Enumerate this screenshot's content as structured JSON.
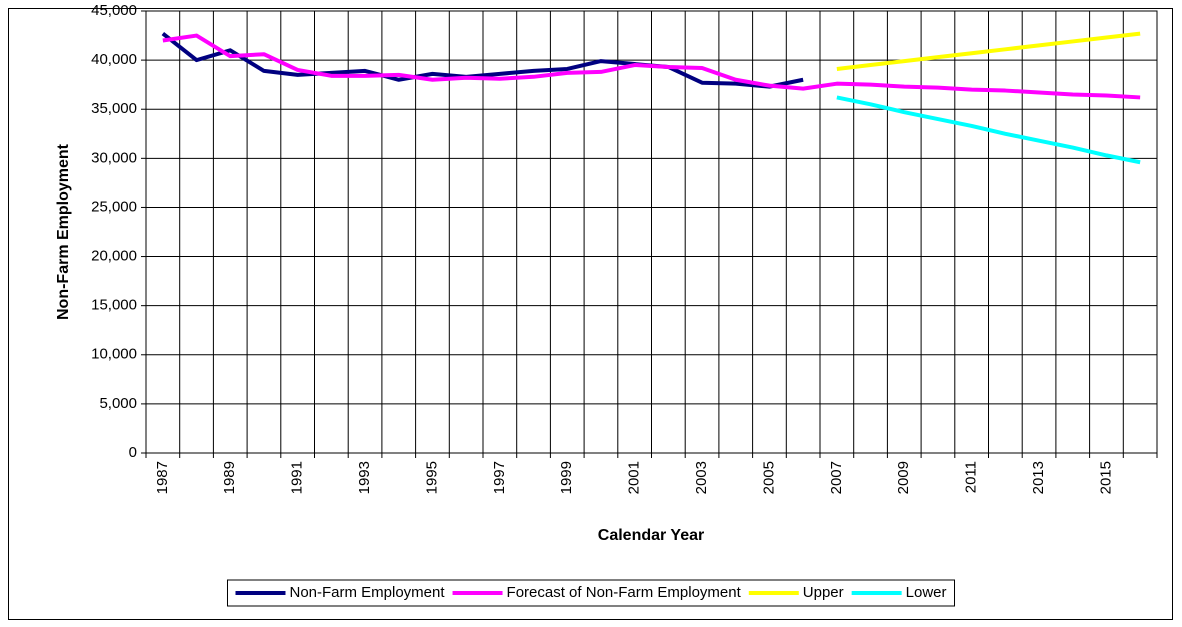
{
  "chart_data": {
    "type": "line",
    "x_label": "Calendar Year",
    "y_label": "Non-Farm Employment",
    "categories": [
      "1987",
      null,
      "1989",
      null,
      "1991",
      null,
      "1993",
      null,
      "1995",
      null,
      "1997",
      null,
      "1999",
      null,
      "2001",
      null,
      "2003",
      null,
      "2005",
      null,
      "2007",
      null,
      "2009",
      null,
      "2011",
      null,
      "2013",
      null,
      "2015",
      null
    ],
    "series": [
      {
        "name": "Non-Farm Employment",
        "color": "#000080",
        "values": [
          42700,
          40000,
          41000,
          38900,
          38500,
          38700,
          38900,
          38000,
          38600,
          38300,
          38600,
          38900,
          39100,
          39900,
          39600,
          39300,
          37700,
          37600,
          37300,
          38000,
          null,
          null,
          null,
          null,
          null,
          null,
          null,
          null,
          null,
          null
        ]
      },
      {
        "name": "Forecast of Non-Farm Employment",
        "color": "#ff00ff",
        "values": [
          42000,
          42500,
          40400,
          40600,
          39000,
          38400,
          38400,
          38500,
          38000,
          38200,
          38100,
          38300,
          38700,
          38800,
          39500,
          39300,
          39200,
          38000,
          37400,
          37100,
          37600,
          37500,
          37300,
          37200,
          37000,
          36900,
          36700,
          36500,
          36400,
          36200
        ]
      },
      {
        "name": "Upper",
        "color": "#ffff00",
        "values": [
          null,
          null,
          null,
          null,
          null,
          null,
          null,
          null,
          null,
          null,
          null,
          null,
          null,
          null,
          null,
          null,
          null,
          null,
          null,
          null,
          39100,
          39500,
          39900,
          40300,
          40700,
          41100,
          41500,
          41900,
          42300,
          42700
        ]
      },
      {
        "name": "Lower",
        "color": "#00ffff",
        "values": [
          null,
          null,
          null,
          null,
          null,
          null,
          null,
          null,
          null,
          null,
          null,
          null,
          null,
          null,
          null,
          null,
          null,
          null,
          null,
          null,
          36200,
          35500,
          34700,
          34000,
          33300,
          32500,
          31800,
          31100,
          30300,
          29600
        ]
      }
    ],
    "ylim": [
      0,
      45000
    ],
    "yticks": [
      0,
      {
        "value": 5000,
        "label": "5,000"
      },
      {
        "value": 10000,
        "label": "10,000"
      },
      {
        "value": 15000,
        "label": "15,000"
      },
      {
        "value": 20000,
        "label": "20,000"
      },
      {
        "value": 25000,
        "label": "25,000"
      },
      {
        "value": 30000,
        "label": "30,000"
      },
      {
        "value": 35000,
        "label": "35,000"
      },
      {
        "value": 40000,
        "label": "40,000"
      },
      {
        "value": 45000,
        "label": "45,000"
      }
    ],
    "grid": true,
    "legend": "bottom"
  }
}
